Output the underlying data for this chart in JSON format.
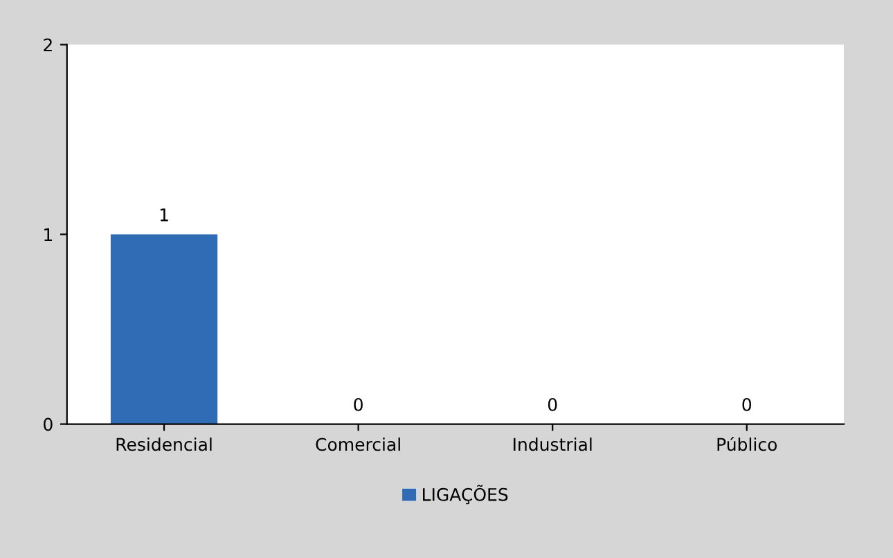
{
  "chart_data": {
    "type": "bar",
    "categories": [
      "Residencial",
      "Comercial",
      "Industrial",
      "Público"
    ],
    "series": [
      {
        "name": "LIGAÇÕES",
        "color": "#2f6cb5",
        "values": [
          1,
          0,
          0,
          0
        ]
      }
    ],
    "ylim": [
      0,
      2
    ],
    "yticks": [
      0,
      1,
      2
    ],
    "data_labels": true,
    "grid": false,
    "legend": "bottom"
  }
}
